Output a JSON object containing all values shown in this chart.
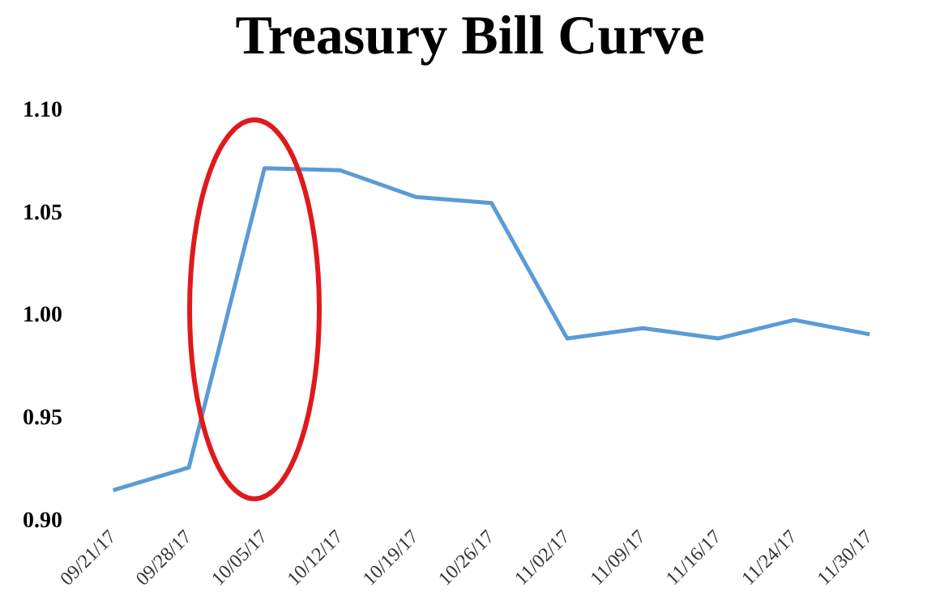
{
  "chart_data": {
    "type": "line",
    "title": "Treasury Bill Curve",
    "categories": [
      "09/21/17",
      "09/28/17",
      "10/05/17",
      "10/12/17",
      "10/19/17",
      "10/26/17",
      "11/02/17",
      "11/09/17",
      "11/16/17",
      "11/24/17",
      "11/30/17"
    ],
    "series": [
      {
        "color": "#5b9bd5",
        "values": [
          0.915,
          0.926,
          1.072,
          1.071,
          1.058,
          1.055,
          0.989,
          0.994,
          0.989,
          0.998,
          0.991
        ]
      }
    ],
    "ylim": [
      0.9,
      1.1
    ],
    "yticks": [
      {
        "value": 0.9,
        "label": "0.90"
      },
      {
        "value": 0.95,
        "label": "0.95"
      },
      {
        "value": 1.0,
        "label": "1.00"
      },
      {
        "value": 1.05,
        "label": "1.05"
      },
      {
        "value": 1.1,
        "label": "1.10"
      }
    ],
    "grid": false,
    "legend": false,
    "marker": "none",
    "line_style": "solid"
  }
}
